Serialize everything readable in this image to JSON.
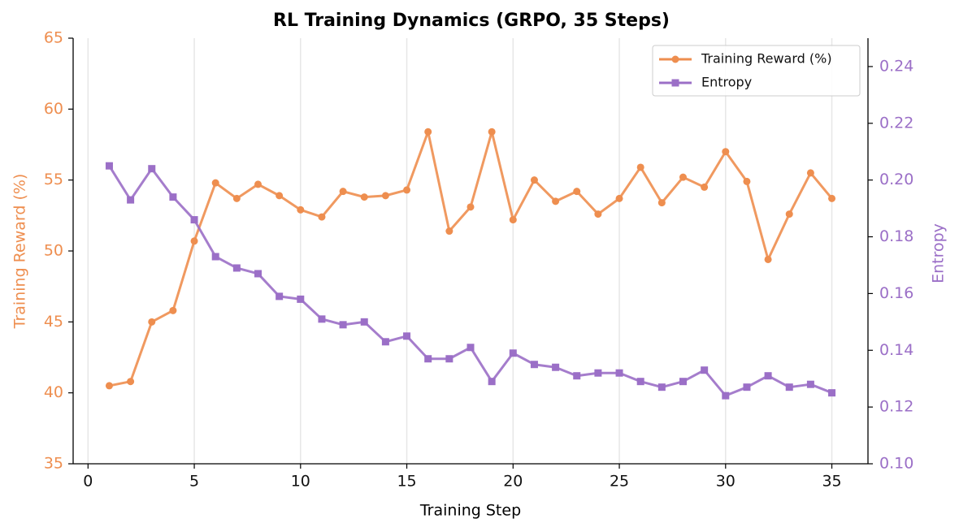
{
  "chart_data": {
    "type": "line",
    "title": "RL Training Dynamics (GRPO, 35 Steps)",
    "x_label": "Training Step",
    "y_label": "Training Reward (%)",
    "y2_label": "Entropy",
    "x": [
      1,
      2,
      3,
      4,
      5,
      6,
      7,
      8,
      9,
      10,
      11,
      12,
      13,
      14,
      15,
      16,
      17,
      18,
      19,
      20,
      21,
      22,
      23,
      24,
      25,
      26,
      27,
      28,
      29,
      30,
      31,
      32,
      33,
      34,
      35
    ],
    "series": [
      {
        "name": "Training Reward (%)",
        "color": "#ee8e4f",
        "marker": "circle",
        "axis": "y",
        "values": [
          40.5,
          40.8,
          45.0,
          45.8,
          50.7,
          54.8,
          53.7,
          54.7,
          53.9,
          52.9,
          52.4,
          54.2,
          53.8,
          53.9,
          54.3,
          58.4,
          51.4,
          53.1,
          58.4,
          52.2,
          55.0,
          53.5,
          54.2,
          52.6,
          53.7,
          55.9,
          53.4,
          55.2,
          54.5,
          57.0,
          54.9,
          49.4,
          52.6,
          55.5,
          53.7
        ]
      },
      {
        "name": "Entropy",
        "color": "#9b6fc7",
        "marker": "square",
        "axis": "y2",
        "values": [
          0.205,
          0.193,
          0.204,
          0.194,
          0.186,
          0.173,
          0.169,
          0.167,
          0.159,
          0.158,
          0.151,
          0.149,
          0.15,
          0.143,
          0.145,
          0.137,
          0.137,
          0.141,
          0.129,
          0.139,
          0.135,
          0.134,
          0.131,
          0.132,
          0.132,
          0.129,
          0.127,
          0.129,
          0.133,
          0.124,
          0.127,
          0.131,
          0.127,
          0.128,
          0.125
        ]
      }
    ],
    "xlim": [
      -0.7,
      36.7
    ],
    "xticks": [
      0,
      5,
      10,
      15,
      20,
      25,
      30,
      35
    ],
    "ylim": [
      35,
      65
    ],
    "yticks": [
      35,
      40,
      45,
      50,
      55,
      60,
      65
    ],
    "y2lim": [
      0.1,
      0.25
    ],
    "y2ticks": [
      {
        "value": 0.1,
        "label": "0.10"
      },
      0.12,
      0.14,
      0.16,
      0.18,
      {
        "value": 0.2,
        "label": "0.20"
      },
      0.22,
      0.24
    ],
    "grid": "x",
    "legend": "upper right"
  }
}
